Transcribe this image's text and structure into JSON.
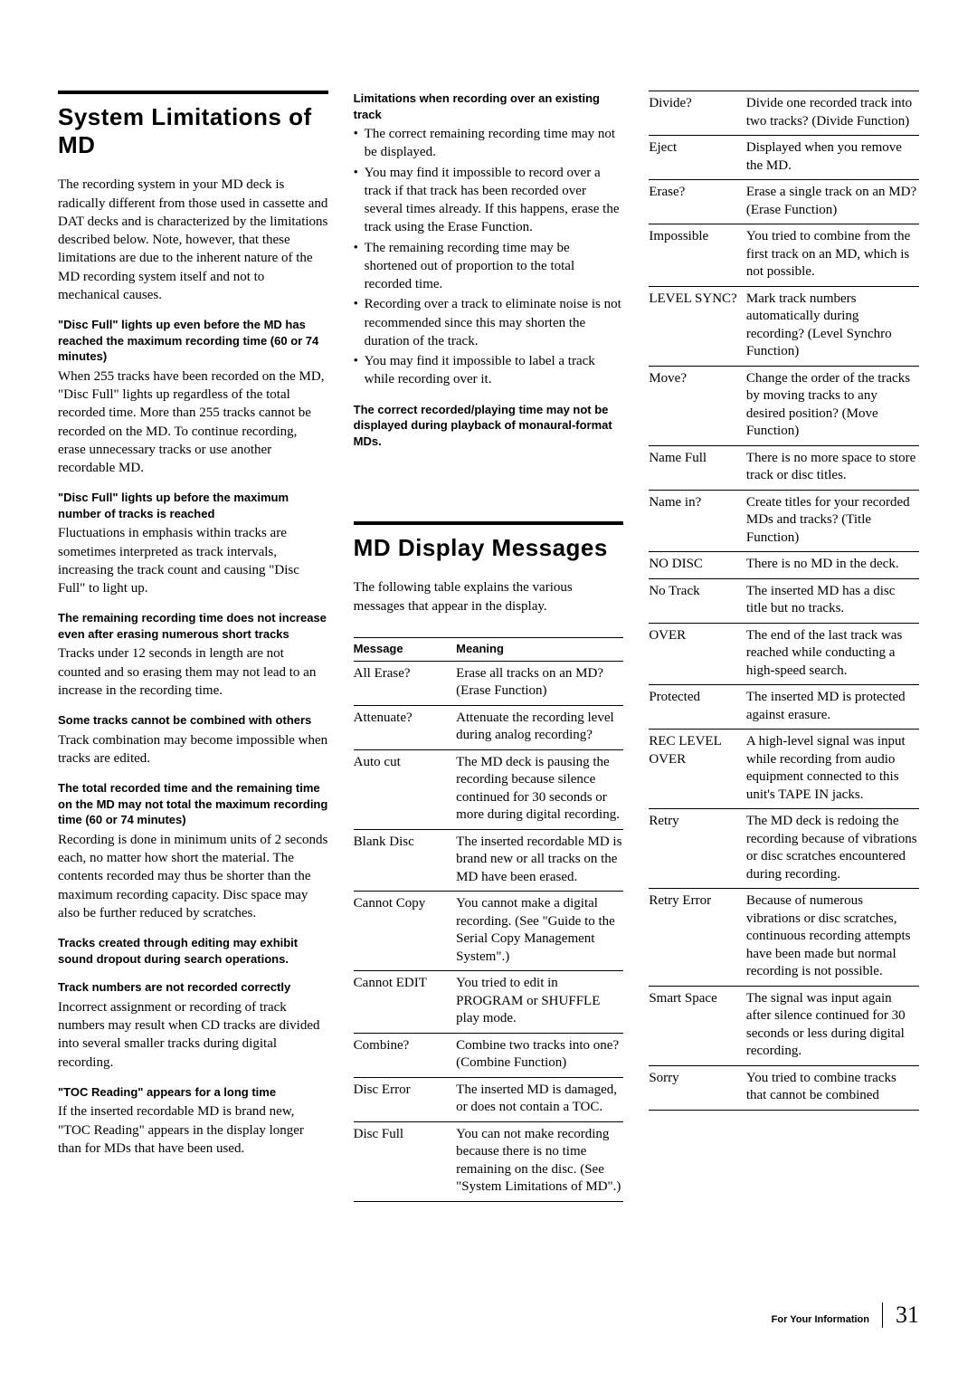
{
  "col1": {
    "title": "System Limitations of MD",
    "intro": "The recording system in your MD deck is radically different from those used in cassette and DAT decks and is characterized by the limitations described below.  Note, however, that these limitations are due to the inherent nature of the MD recording system itself and not to mechanical causes.",
    "s1h": "\"Disc Full\" lights up even before the MD has reached the maximum recording time (60 or 74 minutes)",
    "s1b": "When 255 tracks have been recorded on the MD, \"Disc Full\" lights up regardless of the total recorded time.  More than 255 tracks cannot be recorded on the MD.  To continue recording, erase unnecessary tracks or use another recordable MD.",
    "s2h": "\"Disc Full\" lights up before the maximum number of tracks is reached",
    "s2b": "Fluctuations in emphasis within tracks are sometimes interpreted as track intervals, increasing the track count and causing \"Disc Full\" to light up.",
    "s3h": "The remaining recording time does not increase even after erasing numerous short tracks",
    "s3b": "Tracks under 12 seconds in length are not counted and so erasing them may not lead to an increase in the recording time.",
    "s4h": "Some tracks cannot be combined with others",
    "s4b": "Track combination may become impossible when tracks are edited.",
    "s5h": "The total recorded time and the remaining time on the MD may not total the maximum recording time (60 or 74 minutes)",
    "s5b": "Recording is done in minimum units of 2 seconds each, no matter how short the material.  The contents recorded may thus be shorter than the maximum recording capacity.  Disc space may also be further reduced by scratches.",
    "s6h": "Tracks created through editing may exhibit sound dropout during search operations.",
    "s7h": "Track numbers are not recorded correctly",
    "s7b": "Incorrect assignment or recording of track numbers may result when CD tracks are divided into several smaller tracks during digital recording.",
    "s8h": "\"TOC Reading\" appears for a long time",
    "s8b": "If the inserted recordable MD is brand new, \"TOC Reading\" appears in the display longer than for MDs that have been used."
  },
  "col2": {
    "limh": "Limitations when recording over an existing track",
    "b1": "The correct remaining recording time may not be displayed.",
    "b2": "You may find it impossible to record over a track if that track has been recorded over several times already.  If this happens, erase the track using the Erase Function.",
    "b3": "The remaining recording time may be shortened out of proportion to the total recorded time.",
    "b4": "Recording over a track to eliminate noise is not recommended since this may shorten the duration of the track.",
    "b5": "You may find it impossible to label a track while recording over it.",
    "note": "The correct recorded/playing time may not be displayed during playback of monaural-format MDs.",
    "title2": "MD Display Messages",
    "intro2": "The following table explains the various messages that appear in the display.",
    "table_h1": "Message",
    "table_h2": "Meaning",
    "rows": [
      {
        "m": "All Erase?",
        "d": "Erase all tracks on an MD? (Erase Function)"
      },
      {
        "m": "Attenuate?",
        "d": "Attenuate the recording level during analog recording?"
      },
      {
        "m": "Auto cut",
        "d": "The MD deck is pausing the recording because silence continued for 30 seconds or more during digital recording."
      },
      {
        "m": "Blank Disc",
        "d": "The inserted recordable MD is brand new or all tracks on the MD have been erased."
      },
      {
        "m": "Cannot Copy",
        "d": "You cannot make a digital recording. (See \"Guide to the Serial Copy Management System\".)"
      },
      {
        "m": "Cannot EDIT",
        "d": "You tried to edit in PROGRAM or SHUFFLE play mode."
      },
      {
        "m": "Combine?",
        "d": "Combine two tracks into one? (Combine Function)"
      },
      {
        "m": "Disc Error",
        "d": "The inserted MD is damaged, or does not contain a TOC."
      },
      {
        "m": "Disc Full",
        "d": "You can not make recording because there is no time remaining on the disc. (See \"System Limitations of MD\".)"
      }
    ]
  },
  "col3": {
    "rows": [
      {
        "m": "Divide?",
        "d": "Divide one recorded track into two tracks? (Divide Function)"
      },
      {
        "m": "Eject",
        "d": "Displayed when you remove the MD."
      },
      {
        "m": "Erase?",
        "d": "Erase a single track on an MD? (Erase Function)"
      },
      {
        "m": "Impossible",
        "d": "You tried to combine from the first track on an MD, which is not possible."
      },
      {
        "m": "LEVEL SYNC?",
        "d": "Mark track numbers automatically during recording? (Level Synchro Function)"
      },
      {
        "m": "Move?",
        "d": "Change the order of the tracks by moving tracks to any desired position? (Move Function)"
      },
      {
        "m": "Name Full",
        "d": "There is no more space to store track or disc titles."
      },
      {
        "m": "Name in?",
        "d": "Create titles for your recorded MDs and tracks? (Title Function)"
      },
      {
        "m": "NO DISC",
        "d": "There is no MD in the deck."
      },
      {
        "m": "No Track",
        "d": "The inserted MD has a disc title but no tracks."
      },
      {
        "m": "OVER",
        "d": "The end of the last track was reached while conducting a high-speed search."
      },
      {
        "m": "Protected",
        "d": "The inserted MD is protected against erasure."
      },
      {
        "m": "REC LEVEL OVER",
        "d": "A high-level signal was input while recording from audio equipment connected to this unit's TAPE IN jacks."
      },
      {
        "m": "Retry",
        "d": "The MD deck is redoing the recording because of vibrations or disc scratches encountered during recording."
      },
      {
        "m": "Retry Error",
        "d": "Because of numerous vibrations or disc scratches, continuous recording attempts have been made but normal recording is not possible."
      },
      {
        "m": "Smart Space",
        "d": "The signal was input again after silence continued for 30 seconds or less during digital recording."
      },
      {
        "m": "Sorry",
        "d": "You tried to combine tracks that cannot be combined"
      }
    ]
  },
  "footer": {
    "label": "For Your Information",
    "page": "31"
  }
}
